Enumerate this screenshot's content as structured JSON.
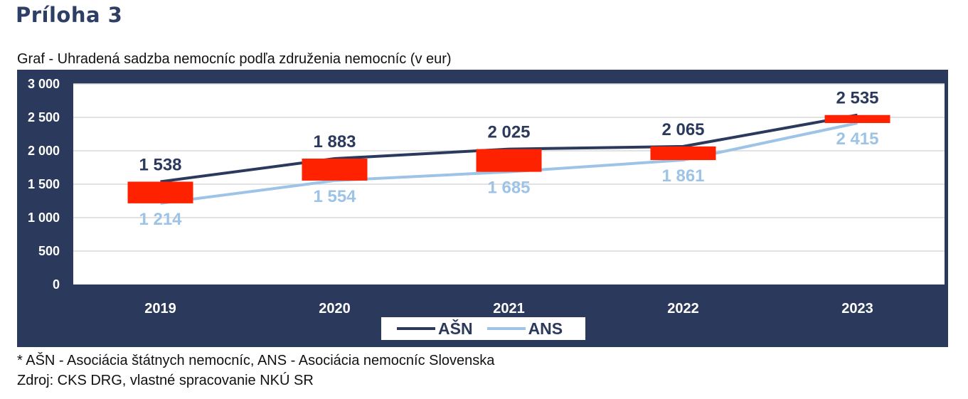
{
  "heading": "Príloha 3",
  "footnote": "* AŠN - Asociácia štátnych nemocníc, ANS - Asociácia nemocníc Slovenska",
  "source": "Zdroj: CKS DRG, vlastné spracovanie NKÚ SR",
  "colors": {
    "panel": "#2b3a5c",
    "asn": "#2b3a5c",
    "ans": "#9dc3e6",
    "highlight": "#ff2200",
    "grid": "#d9d9d9"
  },
  "chart_data": {
    "type": "line",
    "title": "Graf - Uhradená sadzba nemocníc podľa združenia nemocníc (v eur)",
    "categories": [
      "2019",
      "2020",
      "2021",
      "2022",
      "2023"
    ],
    "series": [
      {
        "name": "AŠN",
        "values": [
          1538,
          1883,
          2025,
          2065,
          2535
        ],
        "labels": [
          "1 538",
          "1 883",
          "2 025",
          "2 065",
          "2 535"
        ]
      },
      {
        "name": "ANS",
        "values": [
          1214,
          1554,
          1685,
          1861,
          2415
        ],
        "labels": [
          "1 214",
          "1 554",
          "1 685",
          "1 861",
          "2 415"
        ]
      }
    ],
    "ylim": [
      0,
      3000
    ],
    "yticks": [
      0,
      500,
      1000,
      1500,
      2000,
      2500,
      3000
    ],
    "ytick_labels": [
      "0",
      "500",
      "1 000",
      "1 500",
      "2 000",
      "2 500",
      "3 000"
    ],
    "grid": true,
    "legend_position": "bottom",
    "highlight_ranges": [
      [
        1214,
        1538
      ],
      [
        1554,
        1883
      ],
      [
        1685,
        2025
      ],
      [
        1861,
        2065
      ],
      [
        2415,
        2535
      ]
    ]
  }
}
